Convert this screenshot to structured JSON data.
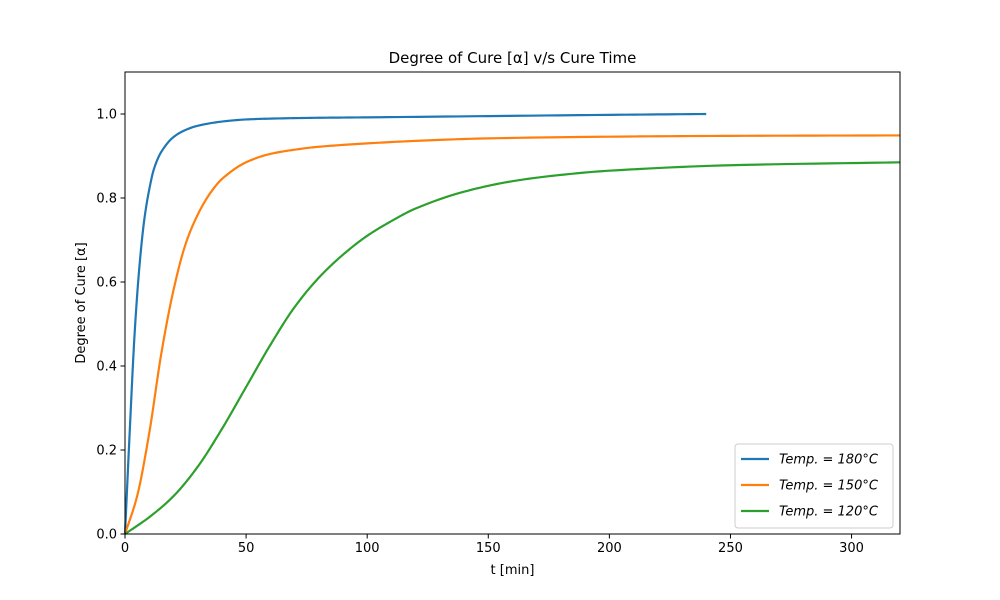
{
  "chart_data": {
    "type": "line",
    "title": "Degree of Cure [α] v/s Cure Time",
    "xlabel": "t [min]",
    "ylabel": "Degree of Cure [α]",
    "xlim": [
      0,
      320
    ],
    "ylim": [
      0,
      1.1
    ],
    "xticks": [
      0,
      50,
      100,
      150,
      200,
      250,
      300
    ],
    "yticks": [
      0.0,
      0.2,
      0.4,
      0.6,
      0.8,
      1.0
    ],
    "xtick_labels": [
      "0",
      "50",
      "100",
      "150",
      "200",
      "250",
      "300"
    ],
    "ytick_labels": [
      "0.0",
      "0.2",
      "0.4",
      "0.6",
      "0.8",
      "1.0"
    ],
    "grid": false,
    "legend_position": "bottom-right",
    "series": [
      {
        "name": "Temp. = 180°C",
        "color": "#1f77b4",
        "x": [
          0,
          2,
          4,
          6,
          8,
          10,
          12,
          15,
          20,
          25,
          30,
          40,
          50,
          60,
          80,
          100,
          150,
          200,
          240
        ],
        "y": [
          0,
          0.25,
          0.48,
          0.64,
          0.75,
          0.82,
          0.87,
          0.91,
          0.945,
          0.962,
          0.972,
          0.982,
          0.987,
          0.989,
          0.991,
          0.992,
          0.995,
          0.998,
          1.0
        ]
      },
      {
        "name": "Temp. = 150°C",
        "color": "#ff7f0e",
        "x": [
          0,
          5,
          10,
          15,
          20,
          25,
          30,
          35,
          40,
          50,
          60,
          70,
          80,
          100,
          120,
          150,
          200,
          250,
          320
        ],
        "y": [
          0,
          0.09,
          0.24,
          0.43,
          0.58,
          0.69,
          0.76,
          0.81,
          0.845,
          0.885,
          0.905,
          0.915,
          0.922,
          0.93,
          0.936,
          0.942,
          0.946,
          0.948,
          0.949
        ]
      },
      {
        "name": "Temp. = 120°C",
        "color": "#2ca02c",
        "x": [
          0,
          10,
          20,
          30,
          40,
          50,
          60,
          70,
          80,
          90,
          100,
          110,
          120,
          140,
          160,
          180,
          200,
          250,
          320
        ],
        "y": [
          0,
          0.04,
          0.09,
          0.16,
          0.25,
          0.35,
          0.45,
          0.54,
          0.61,
          0.665,
          0.71,
          0.745,
          0.775,
          0.815,
          0.84,
          0.855,
          0.865,
          0.878,
          0.885
        ]
      }
    ]
  }
}
